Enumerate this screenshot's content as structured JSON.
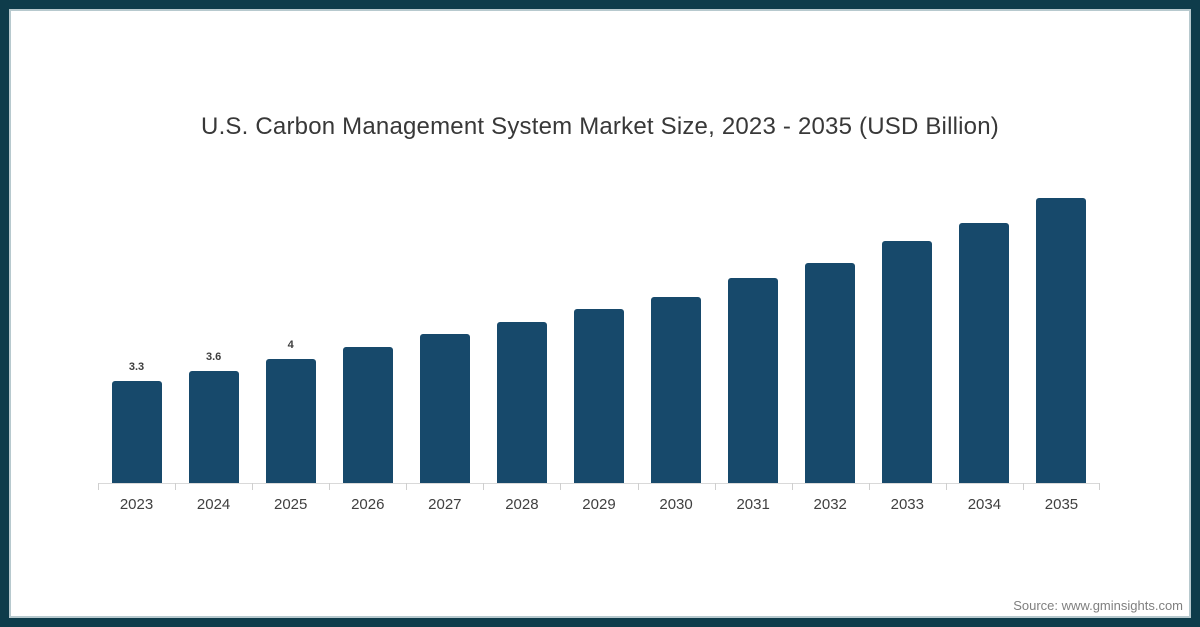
{
  "title": "U.S. Carbon Management System Market Size, 2023 - 2035 (USD Billion)",
  "source": "Source: www.gminsights.com",
  "frame": {
    "border_color": "#0e3c4b",
    "inner_line_color": "#b7c9ce",
    "background": "#ffffff"
  },
  "chart_data": {
    "type": "bar",
    "title": "U.S. Carbon Management System Market Size, 2023 - 2035 (USD Billion)",
    "categories": [
      "2023",
      "2024",
      "2025",
      "2026",
      "2027",
      "2028",
      "2029",
      "2030",
      "2031",
      "2032",
      "2033",
      "2034",
      "2035"
    ],
    "values": [
      3.3,
      3.6,
      4,
      4.4,
      4.8,
      5.2,
      5.6,
      6.0,
      6.6,
      7.1,
      7.8,
      8.4,
      9.2
    ],
    "data_labels": [
      "3.3",
      "3.6",
      "4",
      "",
      "",
      "",
      "",
      "",
      "",
      "",
      "",
      "",
      ""
    ],
    "bar_color": "#17496b",
    "xlabel": "",
    "ylabel": "",
    "ylim": [
      0,
      10
    ],
    "gridlines": false,
    "legend": "none",
    "axis_line_color": "#d9d9d9",
    "tick_color": "#cfcfcf",
    "label_color": "#3d3d3d",
    "category_label_color": "#404040"
  }
}
